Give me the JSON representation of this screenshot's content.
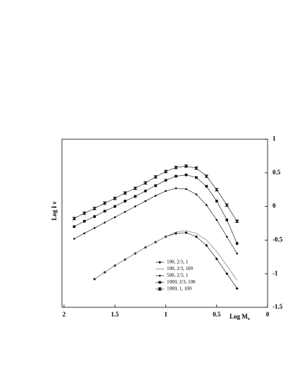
{
  "chart_data": {
    "type": "line",
    "xlabel": "Log M",
    "xlabel_sub": "x",
    "ylabel": "Log I ν",
    "x": [
      1.9,
      1.8,
      1.7,
      1.6,
      1.5,
      1.4,
      1.3,
      1.2,
      1.1,
      1.0,
      0.9,
      0.8,
      0.7,
      0.6,
      0.5,
      0.4,
      0.3
    ],
    "xlim": [
      2.02,
      0
    ],
    "xticks": [
      2,
      1.5,
      1,
      0.5,
      0
    ],
    "ylim": [
      -1.5,
      1
    ],
    "yticks": [
      1,
      0.5,
      0,
      -0.5,
      -1,
      -1.5
    ],
    "series": [
      {
        "name": "100, 2/3, 1",
        "color": "#000000",
        "marker": "diamond",
        "values": [
          null,
          null,
          -1.08,
          -0.98,
          -0.88,
          -0.79,
          -0.7,
          -0.61,
          -0.53,
          -0.45,
          -0.4,
          -0.39,
          -0.45,
          -0.58,
          -0.78,
          -1.0,
          -1.22
        ]
      },
      {
        "name": "100, 2/3, 100",
        "color": "#888888",
        "marker": "none",
        "values": [
          null,
          null,
          -1.08,
          -0.98,
          -0.88,
          -0.79,
          -0.7,
          -0.61,
          -0.53,
          -0.45,
          -0.38,
          -0.36,
          -0.4,
          -0.5,
          -0.67,
          -0.88,
          -1.1
        ]
      },
      {
        "name": "500, 2/3, 1",
        "color": "#000000",
        "marker": "dot",
        "values": [
          -0.48,
          -0.4,
          -0.32,
          -0.24,
          -0.16,
          -0.08,
          0.0,
          0.08,
          0.16,
          0.23,
          0.27,
          0.26,
          0.18,
          0.02,
          -0.2,
          -0.45,
          -0.7
        ]
      },
      {
        "name": "1000, 2/3, 100",
        "color": "#000000",
        "marker": "square",
        "values": [
          -0.3,
          -0.22,
          -0.15,
          -0.07,
          0.0,
          0.08,
          0.15,
          0.23,
          0.31,
          0.39,
          0.45,
          0.47,
          0.43,
          0.3,
          0.08,
          -0.2,
          -0.55
        ]
      },
      {
        "name": "1000, 1, 100",
        "color": "#000000",
        "marker": "cross",
        "values": [
          -0.18,
          -0.1,
          -0.03,
          0.05,
          0.12,
          0.2,
          0.27,
          0.35,
          0.44,
          0.52,
          0.58,
          0.6,
          0.57,
          0.45,
          0.25,
          0.02,
          -0.22
        ]
      }
    ]
  }
}
